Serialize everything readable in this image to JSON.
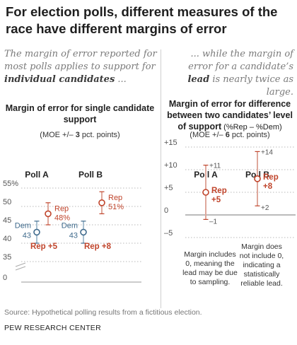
{
  "title": "For election polls, different measures of the race have different margins of error",
  "intro_left": {
    "before": "The margin of error reported for most polls applies to support for ",
    "bold": "individual candidates",
    "after": " ..."
  },
  "intro_right": {
    "before": "... while the margin of error for a candidate’s ",
    "bold": "lead",
    "after": " is nearly twice as large."
  },
  "left_panel": {
    "heading": "Margin of error for single candidate support",
    "moe_before": "(MOE +/– ",
    "moe_bold": "3",
    "moe_after": " pct. points)"
  },
  "right_panel": {
    "heading_bold": "Margin of error for difference between two candidates’ level of support",
    "heading_suffix": " (%Rep – %Dem)",
    "moe_before": "(MOE +/– ",
    "moe_bold": "6",
    "moe_after": " pct. points)"
  },
  "source": "Source: Hypothetical polling results from a fictitious election.",
  "org": "PEW RESEARCH CENTER",
  "colors": {
    "rep": "#c0442b",
    "dem": "#3f6a8c",
    "rep_light": "#dfa89c",
    "dem_light": "#a9c0d1",
    "grid": "#b8b8b8",
    "text": "#555555"
  },
  "chart_data": [
    {
      "type": "errorbar",
      "ylim": [
        0,
        55
      ],
      "yticks": [
        0,
        35,
        40,
        45,
        50,
        55
      ],
      "ytick_labels": [
        "0",
        "35",
        "40",
        "45",
        "50",
        "55%"
      ],
      "categories": [
        "Poll A",
        "Poll B"
      ],
      "series": [
        {
          "name": "Rep",
          "values": [
            48,
            51
          ],
          "labels": [
            "48%",
            "51%"
          ],
          "moe": 3
        },
        {
          "name": "Dem",
          "values": [
            43,
            43
          ],
          "labels": [
            "43",
            "43"
          ],
          "moe": 3
        }
      ],
      "annotations": [
        "Rep +5",
        "Rep +8"
      ]
    },
    {
      "type": "errorbar",
      "ylim": [
        -5,
        15
      ],
      "yticks": [
        -5,
        0,
        5,
        10,
        15
      ],
      "ytick_labels": [
        "–5",
        "0",
        "+5",
        "+10",
        "+15"
      ],
      "categories": [
        "Poll A",
        "Poll B"
      ],
      "series": [
        {
          "name": "Rep lead",
          "values": [
            5,
            8
          ],
          "labels": [
            "Rep +5",
            "Rep +8"
          ],
          "lower": [
            -1,
            2
          ],
          "upper": [
            11,
            14
          ],
          "lower_labels": [
            "–1",
            "+2"
          ],
          "upper_labels": [
            "+11",
            "+14"
          ]
        }
      ],
      "notes": [
        "Margin includes 0, meaning the lead may be due to sampling.",
        "Margin does not include 0, indicating a statistically reliable lead."
      ]
    }
  ]
}
